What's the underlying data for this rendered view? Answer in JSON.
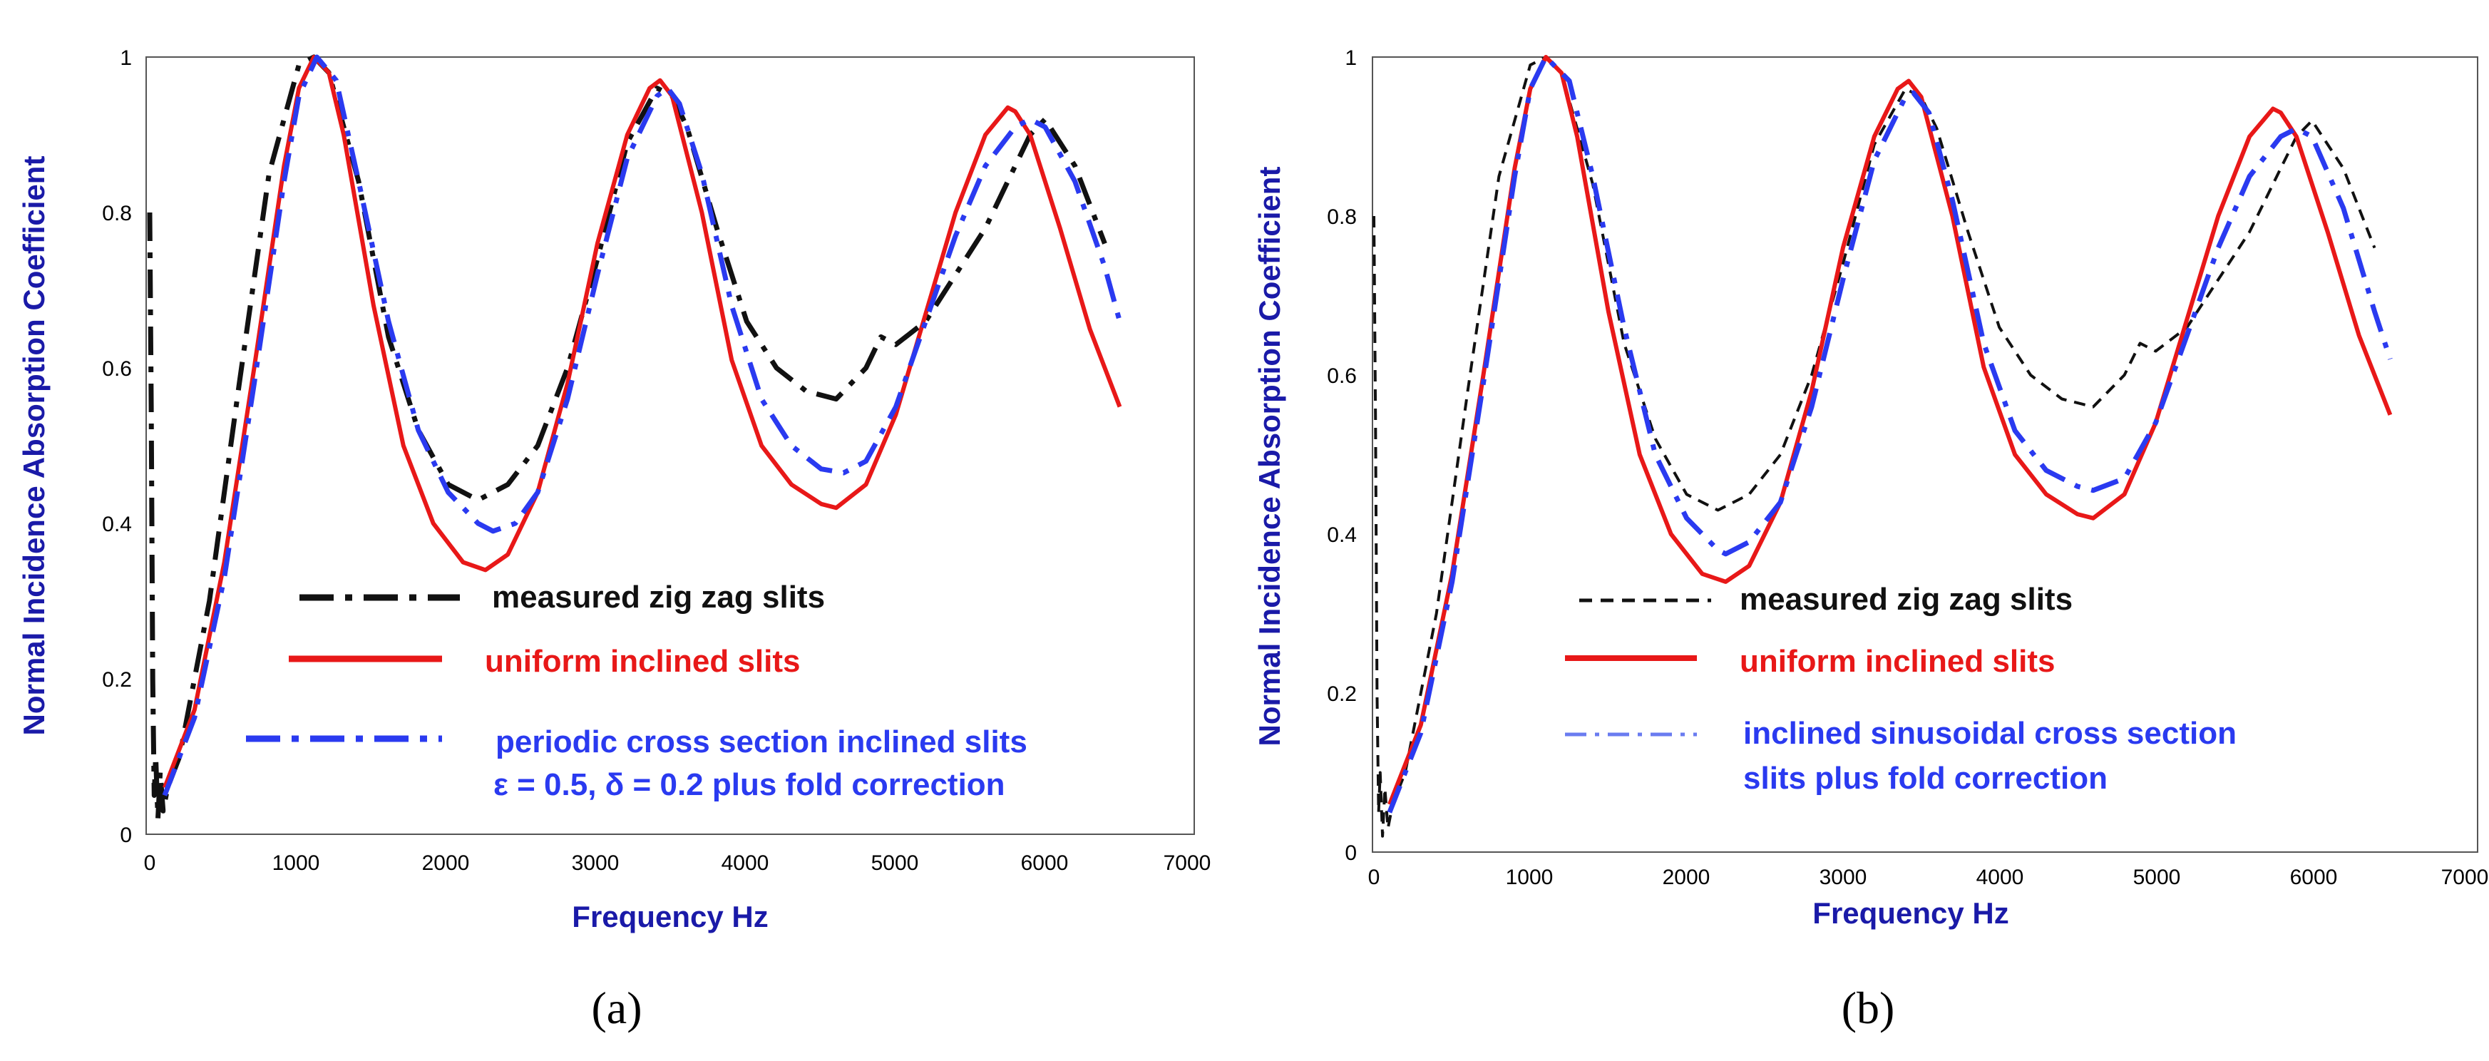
{
  "chart_data": [
    {
      "type": "line",
      "panel_label": "(a)",
      "xlabel": "Frequency Hz",
      "ylabel": "Normal Incidence Absorption Coefficient",
      "xlim": [
        0,
        7000
      ],
      "ylim": [
        0,
        1
      ],
      "xticks": [
        "0",
        "1000",
        "2000",
        "3000",
        "4000",
        "5000",
        "6000",
        "7000"
      ],
      "yticks": [
        "0",
        "0.2",
        "0.4",
        "0.6",
        "0.8",
        "1"
      ],
      "grid": false,
      "legend_position": "center-bottom",
      "series": [
        {
          "name": "measured zig zag slits",
          "color": "#111111",
          "style": "dashdot",
          "x": [
            0,
            10,
            20,
            30,
            40,
            55,
            70,
            90,
            120,
            200,
            400,
            600,
            800,
            1000,
            1100,
            1200,
            1400,
            1600,
            1800,
            2000,
            2200,
            2400,
            2600,
            2800,
            3000,
            3200,
            3400,
            3500,
            3600,
            3800,
            4000,
            4200,
            4400,
            4600,
            4800,
            4900,
            5000,
            5200,
            5400,
            5600,
            5800,
            5900,
            6000,
            6200,
            6400
          ],
          "values": [
            0.8,
            0.55,
            0.2,
            0.05,
            0.1,
            0.02,
            0.08,
            0.03,
            0.06,
            0.1,
            0.3,
            0.58,
            0.85,
            0.99,
            1.0,
            0.98,
            0.84,
            0.64,
            0.52,
            0.45,
            0.43,
            0.45,
            0.5,
            0.6,
            0.74,
            0.89,
            0.96,
            0.95,
            0.91,
            0.78,
            0.66,
            0.6,
            0.57,
            0.56,
            0.6,
            0.64,
            0.63,
            0.66,
            0.72,
            0.78,
            0.86,
            0.9,
            0.92,
            0.86,
            0.76
          ]
        },
        {
          "name": "uniform inclined slits",
          "color": "#e81818",
          "style": "solid",
          "x": [
            100,
            300,
            500,
            700,
            900,
            1000,
            1100,
            1200,
            1300,
            1500,
            1700,
            1900,
            2100,
            2250,
            2400,
            2600,
            2800,
            3000,
            3200,
            3350,
            3420,
            3500,
            3700,
            3900,
            4100,
            4300,
            4500,
            4600,
            4800,
            5000,
            5200,
            5400,
            5600,
            5750,
            5800,
            5900,
            6100,
            6300,
            6500
          ],
          "values": [
            0.06,
            0.16,
            0.35,
            0.6,
            0.86,
            0.96,
            1.0,
            0.98,
            0.9,
            0.68,
            0.5,
            0.4,
            0.35,
            0.34,
            0.36,
            0.44,
            0.58,
            0.76,
            0.9,
            0.96,
            0.97,
            0.95,
            0.8,
            0.61,
            0.5,
            0.45,
            0.425,
            0.42,
            0.45,
            0.54,
            0.67,
            0.8,
            0.9,
            0.935,
            0.93,
            0.9,
            0.78,
            0.65,
            0.55
          ]
        },
        {
          "name": "periodic cross section inclined slits",
          "color": "#2a3af0",
          "style": "dashdot",
          "x": [
            100,
            300,
            500,
            700,
            900,
            1000,
            1120,
            1250,
            1400,
            1600,
            1800,
            2000,
            2200,
            2300,
            2450,
            2600,
            2800,
            3000,
            3200,
            3400,
            3470,
            3550,
            3700,
            3900,
            4100,
            4300,
            4500,
            4650,
            4800,
            5000,
            5200,
            5400,
            5600,
            5800,
            5900,
            6000,
            6200,
            6400,
            6500
          ],
          "values": [
            0.05,
            0.15,
            0.33,
            0.58,
            0.84,
            0.95,
            1.0,
            0.97,
            0.84,
            0.66,
            0.52,
            0.44,
            0.4,
            0.39,
            0.4,
            0.44,
            0.56,
            0.72,
            0.87,
            0.95,
            0.96,
            0.94,
            0.85,
            0.68,
            0.56,
            0.5,
            0.47,
            0.465,
            0.48,
            0.55,
            0.66,
            0.77,
            0.86,
            0.91,
            0.92,
            0.91,
            0.84,
            0.73,
            0.66
          ]
        }
      ],
      "legend_entries": [
        "measured zig zag slits",
        "uniform inclined slits",
        "periodic cross section inclined slits",
        "ε = 0.5, δ = 0.2 plus fold correction"
      ]
    },
    {
      "type": "line",
      "panel_label": "(b)",
      "xlabel": "Frequency Hz",
      "ylabel": "Normal Incidence Absorption Coefficient",
      "xlim": [
        0,
        7000
      ],
      "ylim": [
        0,
        1
      ],
      "xticks": [
        "0",
        "1000",
        "2000",
        "3000",
        "4000",
        "5000",
        "6000",
        "7000"
      ],
      "yticks": [
        "0",
        "0.2",
        "0.4",
        "0.6",
        "0.8",
        "1"
      ],
      "grid": false,
      "legend_position": "center-bottom",
      "series": [
        {
          "name": "measured zig zag slits",
          "color": "#111111",
          "style": "dashed",
          "x": [
            0,
            10,
            20,
            30,
            40,
            55,
            70,
            90,
            120,
            200,
            400,
            600,
            800,
            1000,
            1100,
            1200,
            1400,
            1600,
            1800,
            2000,
            2200,
            2400,
            2600,
            2800,
            3000,
            3200,
            3400,
            3500,
            3600,
            3800,
            4000,
            4200,
            4400,
            4600,
            4800,
            4900,
            5000,
            5200,
            5400,
            5600,
            5800,
            5900,
            6000,
            6200,
            6400
          ],
          "values": [
            0.8,
            0.55,
            0.2,
            0.05,
            0.1,
            0.02,
            0.08,
            0.03,
            0.06,
            0.1,
            0.3,
            0.58,
            0.85,
            0.99,
            1.0,
            0.98,
            0.84,
            0.64,
            0.52,
            0.45,
            0.43,
            0.45,
            0.5,
            0.6,
            0.74,
            0.89,
            0.96,
            0.95,
            0.91,
            0.78,
            0.66,
            0.6,
            0.57,
            0.56,
            0.6,
            0.64,
            0.63,
            0.66,
            0.72,
            0.78,
            0.86,
            0.9,
            0.92,
            0.86,
            0.76
          ]
        },
        {
          "name": "uniform inclined slits",
          "color": "#e81818",
          "style": "solid",
          "x": [
            100,
            300,
            500,
            700,
            900,
            1000,
            1100,
            1200,
            1300,
            1500,
            1700,
            1900,
            2100,
            2250,
            2400,
            2600,
            2800,
            3000,
            3200,
            3350,
            3420,
            3500,
            3700,
            3900,
            4100,
            4300,
            4500,
            4600,
            4800,
            5000,
            5200,
            5400,
            5600,
            5750,
            5800,
            5900,
            6100,
            6300,
            6500
          ],
          "values": [
            0.06,
            0.16,
            0.35,
            0.6,
            0.86,
            0.96,
            1.0,
            0.98,
            0.9,
            0.68,
            0.5,
            0.4,
            0.35,
            0.34,
            0.36,
            0.44,
            0.58,
            0.76,
            0.9,
            0.96,
            0.97,
            0.95,
            0.8,
            0.61,
            0.5,
            0.45,
            0.425,
            0.42,
            0.45,
            0.54,
            0.67,
            0.8,
            0.9,
            0.935,
            0.93,
            0.9,
            0.78,
            0.65,
            0.55
          ]
        },
        {
          "name": "inclined sinusoidal cross section slits plus fold correction",
          "color": "#2a3af0",
          "style": "dashdot",
          "x": [
            100,
            300,
            500,
            700,
            900,
            1000,
            1100,
            1250,
            1400,
            1600,
            1800,
            2000,
            2200,
            2250,
            2400,
            2600,
            2800,
            3000,
            3200,
            3400,
            3450,
            3550,
            3700,
            3900,
            4100,
            4300,
            4500,
            4600,
            4800,
            5000,
            5200,
            5400,
            5600,
            5800,
            5900,
            6000,
            6200,
            6400,
            6500
          ],
          "values": [
            0.05,
            0.15,
            0.34,
            0.59,
            0.85,
            0.96,
            1.0,
            0.97,
            0.85,
            0.66,
            0.5,
            0.42,
            0.38,
            0.375,
            0.39,
            0.44,
            0.56,
            0.72,
            0.87,
            0.95,
            0.955,
            0.93,
            0.82,
            0.64,
            0.53,
            0.48,
            0.46,
            0.455,
            0.47,
            0.54,
            0.65,
            0.76,
            0.85,
            0.9,
            0.91,
            0.9,
            0.81,
            0.68,
            0.62
          ]
        }
      ],
      "legend_entries": [
        "measured zig zag slits",
        "uniform inclined slits",
        "inclined sinusoidal cross section",
        "slits plus fold correction"
      ]
    }
  ]
}
